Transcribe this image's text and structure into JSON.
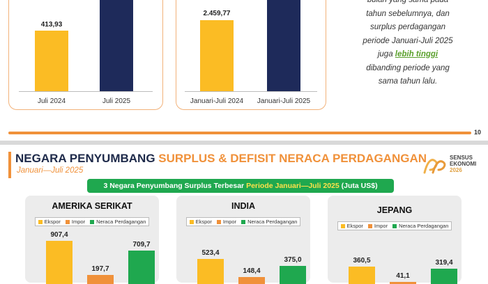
{
  "top_slide": {
    "left_chart": {
      "type": "bar",
      "categories": [
        "Juli 2024",
        "Juli 2025"
      ],
      "values": [
        413.93,
        null
      ],
      "value_labels": [
        "413,93",
        ""
      ],
      "colors": [
        "#fbbc24",
        "#1e2a5a"
      ]
    },
    "mid_chart": {
      "type": "bar",
      "categories": [
        "Januari-Juli 2024",
        "Januari-Juli 2025"
      ],
      "values": [
        2459.77,
        null
      ],
      "value_labels": [
        "2.459,77",
        ""
      ],
      "colors": [
        "#fbbc24",
        "#1e2a5a"
      ]
    },
    "side_text": {
      "l1": "bulan yang sama pada",
      "l2": "tahun sebelumnya, dan",
      "l3": "surplus perdagangan",
      "l4": "periode Januari-Juli 2025",
      "l5a": "juga ",
      "l5b": "lebih tinggi",
      "l6": "dibanding periode yang",
      "l7": "sama tahun lalu."
    },
    "page_number": "10"
  },
  "bottom_slide": {
    "title_main": "NEGARA PENYUMBANG ",
    "title_accent": "SURPLUS & DEFISIT NERACA PERDAGANGAN",
    "subtitle": "Januari—Juli 2025",
    "logo": {
      "line1": "SENSUS",
      "line2": "EKONOMI",
      "line3": "2026"
    },
    "banner_main": "3 Negara Penyumbang Surplus Terbesar ",
    "banner_hl": "Periode Januari—Juli 2025",
    "banner_tail": " (Juta US$)"
  },
  "chart_data": [
    {
      "type": "bar",
      "title": "AMERIKA SERIKAT",
      "categories": [
        "Ekspor",
        "Impor",
        "Neraca Perdagangan"
      ],
      "values": [
        907.4,
        197.7,
        709.7
      ],
      "value_labels": [
        "907,4",
        "197,7",
        "709,7"
      ],
      "colors": [
        "#fbbc24",
        "#f0913a",
        "#1fa84f"
      ]
    },
    {
      "type": "bar",
      "title": "INDIA",
      "categories": [
        "Ekspor",
        "Impor",
        "Neraca Perdagangan"
      ],
      "values": [
        523.4,
        148.4,
        375.0
      ],
      "value_labels": [
        "523,4",
        "148,4",
        "375,0"
      ],
      "colors": [
        "#fbbc24",
        "#f0913a",
        "#1fa84f"
      ]
    },
    {
      "type": "bar",
      "title": "JEPANG",
      "categories": [
        "Ekspor",
        "Impor",
        "Neraca Perdagangan"
      ],
      "values": [
        360.5,
        41.1,
        319.4
      ],
      "value_labels": [
        "360,5",
        "41,1",
        "319,4"
      ],
      "colors": [
        "#fbbc24",
        "#f0913a",
        "#1fa84f"
      ]
    }
  ]
}
